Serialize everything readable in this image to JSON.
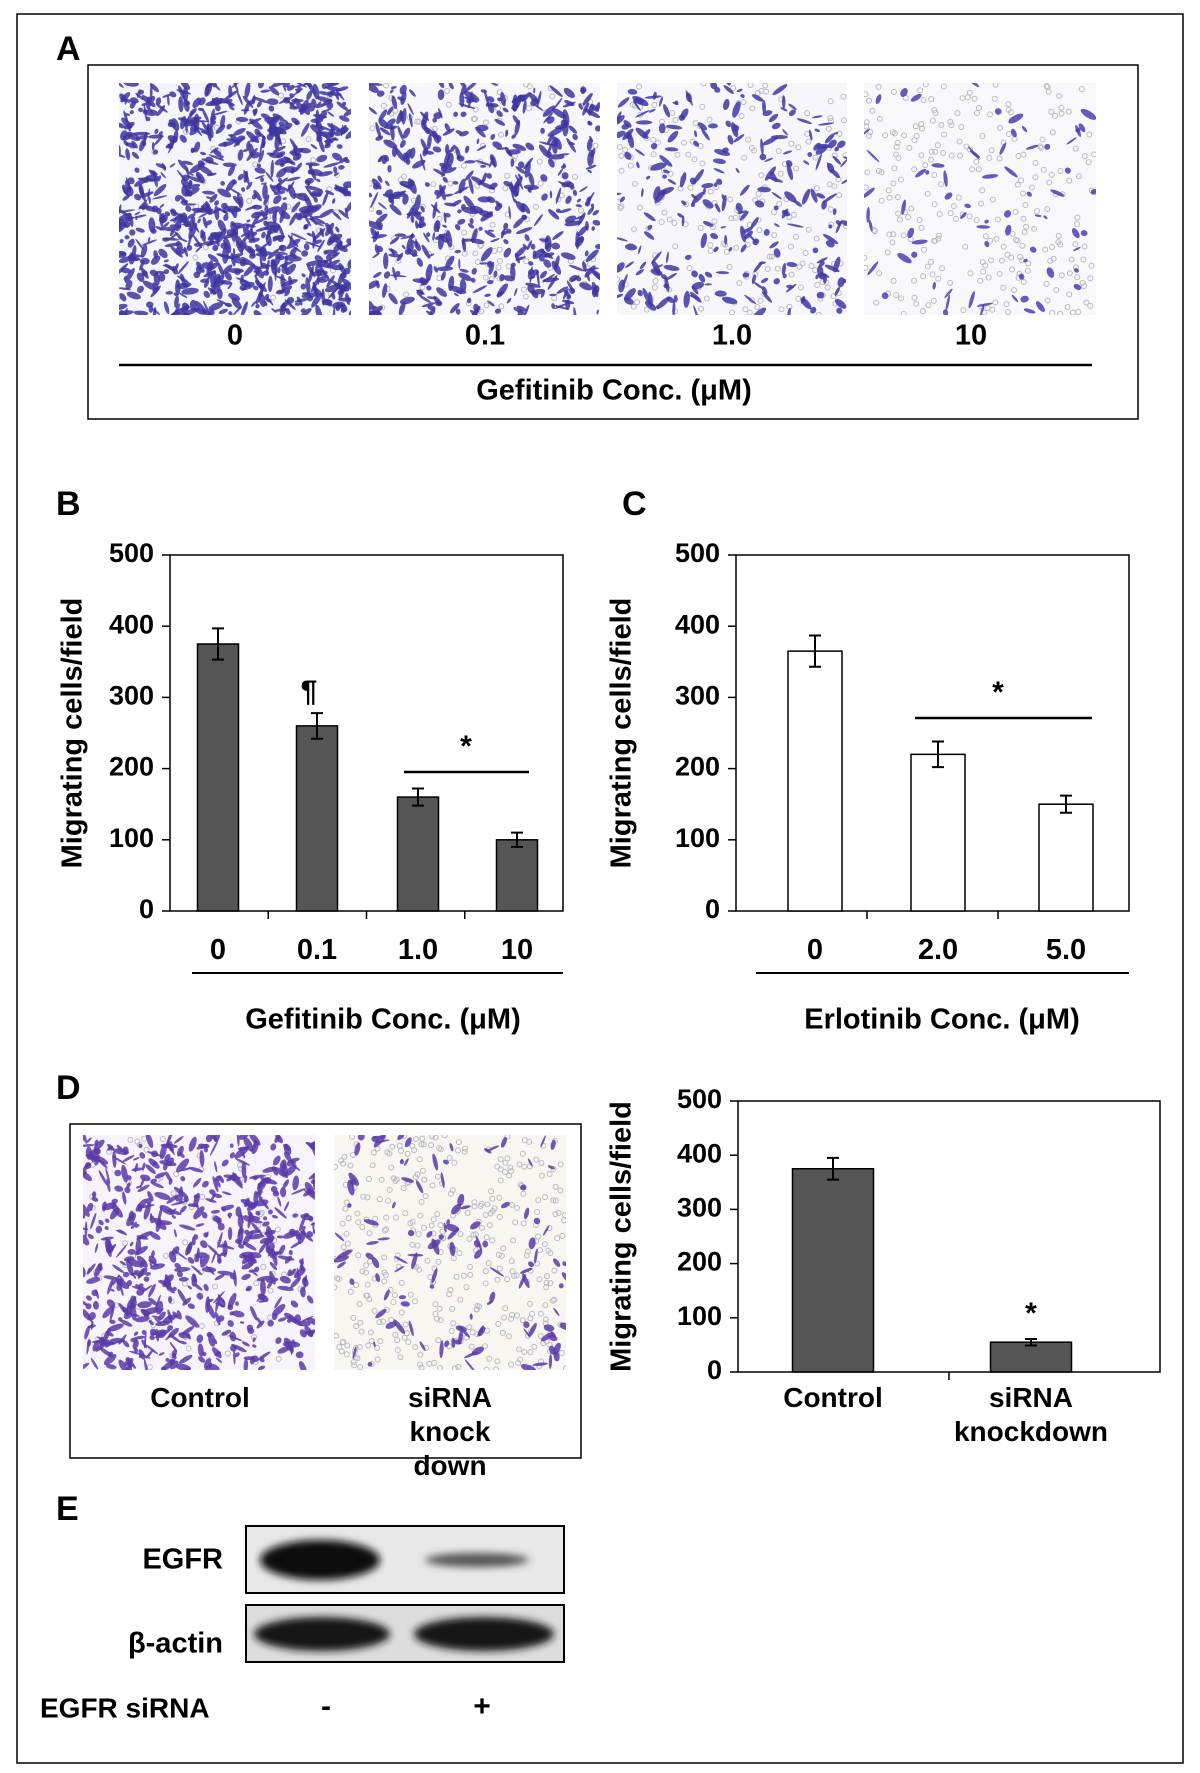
{
  "panel_a": {
    "letter": "A",
    "labels": [
      "0",
      "0.1",
      "1.0",
      "10"
    ],
    "axis_label": "Gefitinib Conc. (μM)"
  },
  "chart_data": [
    {
      "type": "bar",
      "letter": "B",
      "categories": [
        "0",
        "0.1",
        "1.0",
        "10"
      ],
      "values": [
        375,
        260,
        160,
        100
      ],
      "errors": [
        22,
        18,
        12,
        10
      ],
      "color": "#555555",
      "ylabel": "Migrating cells/field",
      "xlabel": "Gefitinib Conc. (μM)",
      "ylim": [
        0,
        500
      ],
      "yticks": [
        0,
        100,
        200,
        300,
        400,
        500
      ],
      "annotations": [
        "¶",
        "*"
      ]
    },
    {
      "type": "bar",
      "letter": "C",
      "categories": [
        "0",
        "2.0",
        "5.0"
      ],
      "values": [
        365,
        220,
        150
      ],
      "errors": [
        22,
        18,
        12
      ],
      "color": "#ffffff",
      "ylabel": "Migrating cells/field",
      "xlabel": "Erlotinib Conc. (μM)",
      "ylim": [
        0,
        500
      ],
      "yticks": [
        0,
        100,
        200,
        300,
        400,
        500
      ],
      "annotations": [
        "*"
      ]
    },
    {
      "type": "bar",
      "categories": [
        "Control",
        "siRNA knockdown"
      ],
      "values": [
        375,
        55
      ],
      "errors": [
        20,
        6
      ],
      "color": "#555555",
      "ylabel": "Migrating cells/field",
      "ylim": [
        0,
        500
      ],
      "yticks": [
        0,
        100,
        200,
        300,
        400,
        500
      ],
      "annotations": [
        "*"
      ]
    }
  ],
  "panel_d": {
    "letter": "D",
    "labels": [
      "Control",
      "siRNA knock down"
    ]
  },
  "panel_e": {
    "letter": "E",
    "rows": [
      "EGFR",
      "β-actin"
    ],
    "condition_label": "EGFR siRNA",
    "conditions": [
      "-",
      "+"
    ]
  }
}
